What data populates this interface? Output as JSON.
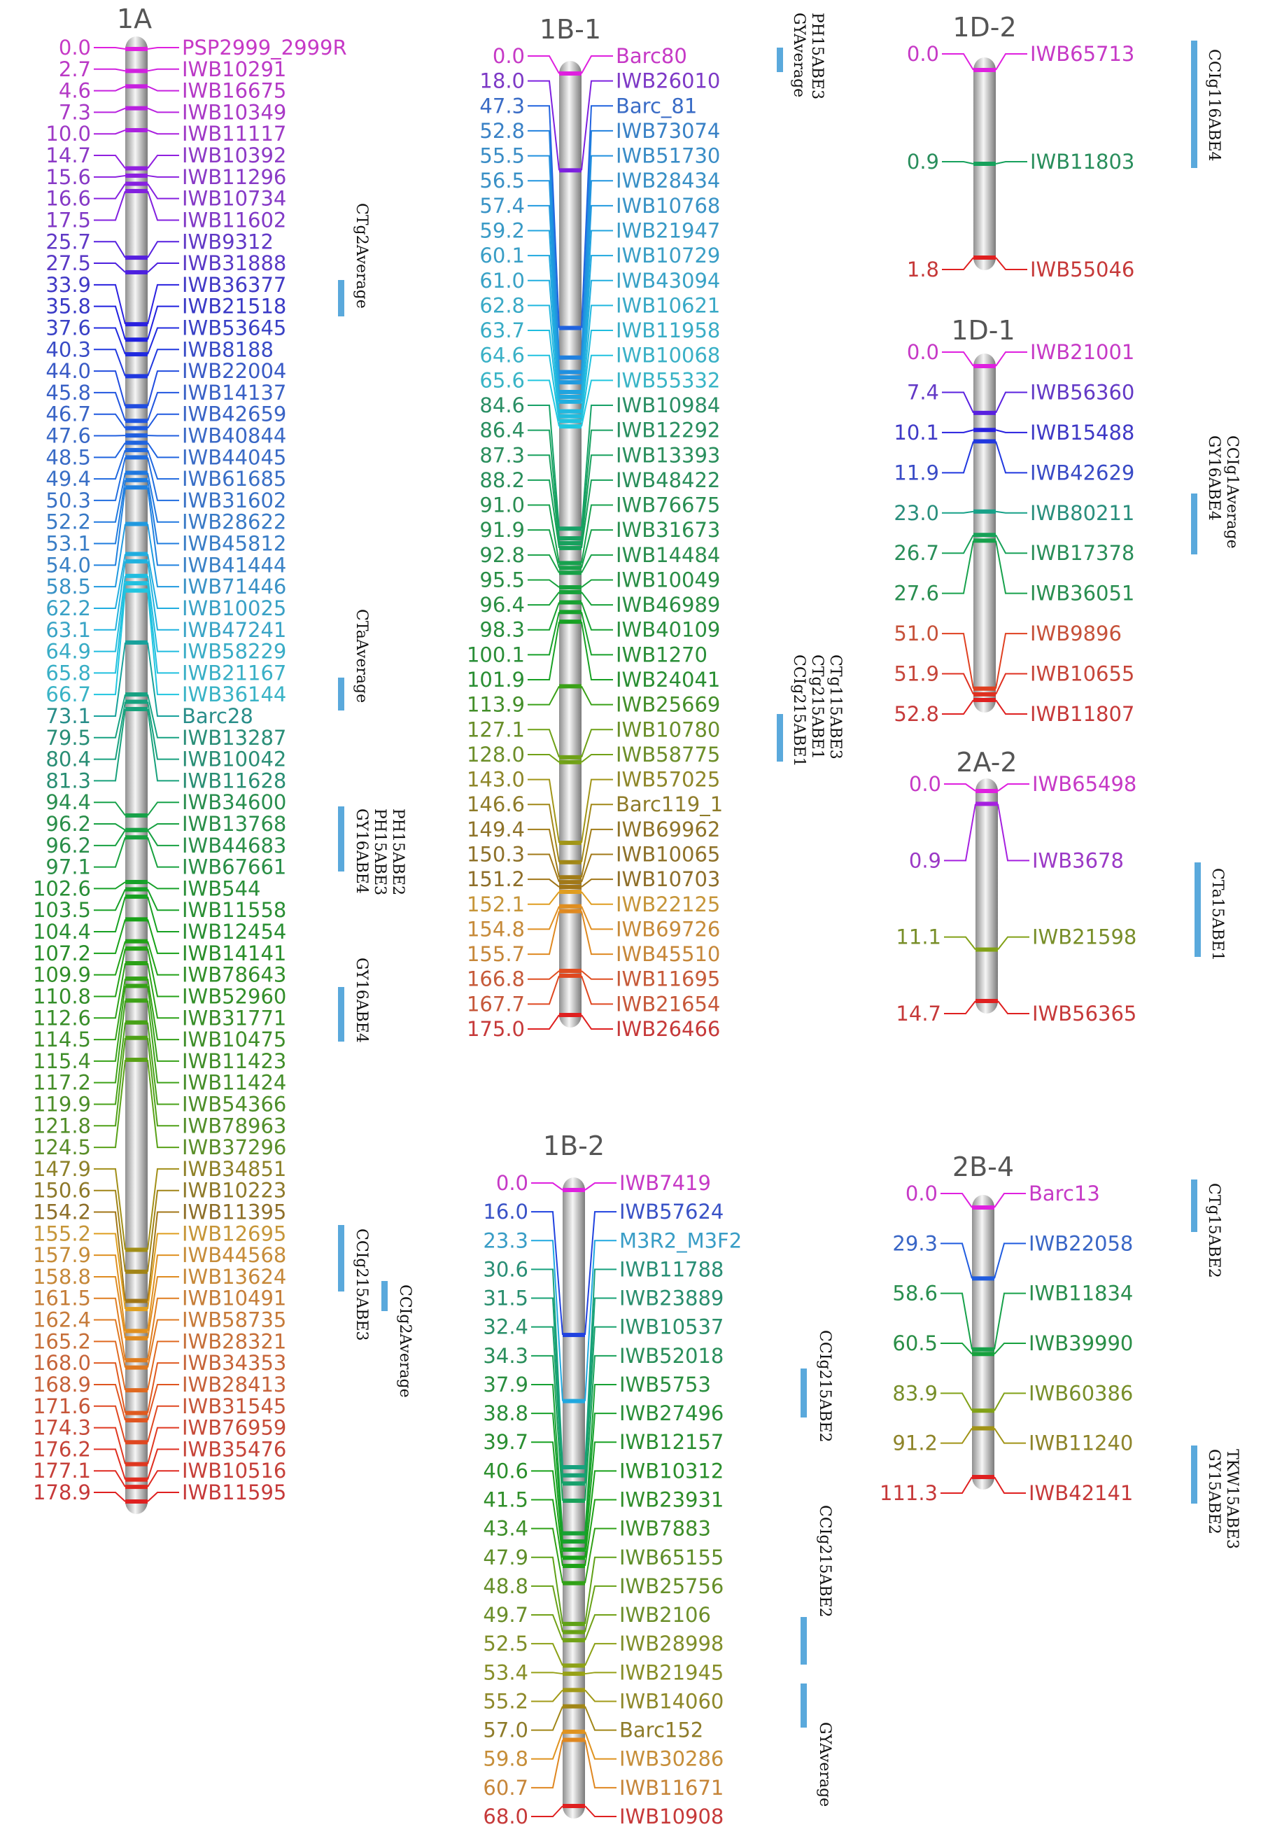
{
  "chromosomes": [
    {
      "id": "1A",
      "title": "1A",
      "markers": [
        [
          "0.0",
          "PSP2999_2999R"
        ],
        [
          "2.7",
          "IWB10291"
        ],
        [
          "4.6",
          "IWB16675"
        ],
        [
          "7.3",
          "IWB10349"
        ],
        [
          "10.0",
          "IWB11117"
        ],
        [
          "14.7",
          "IWB10392"
        ],
        [
          "15.6",
          "IWB11296"
        ],
        [
          "16.6",
          "IWB10734"
        ],
        [
          "17.5",
          "IWB11602"
        ],
        [
          "25.7",
          "IWB9312"
        ],
        [
          "27.5",
          "IWB31888"
        ],
        [
          "33.9",
          "IWB36377"
        ],
        [
          "35.8",
          "IWB21518"
        ],
        [
          "37.6",
          "IWB53645"
        ],
        [
          "40.3",
          "IWB8188"
        ],
        [
          "44.0",
          "IWB22004"
        ],
        [
          "45.8",
          "IWB14137"
        ],
        [
          "46.7",
          "IWB42659"
        ],
        [
          "47.6",
          "IWB40844"
        ],
        [
          "48.5",
          "IWB44045"
        ],
        [
          "49.4",
          "IWB61685"
        ],
        [
          "50.3",
          "IWB31602"
        ],
        [
          "52.2",
          "IWB28622"
        ],
        [
          "53.1",
          "IWB45812"
        ],
        [
          "54.0",
          "IWB41444"
        ],
        [
          "58.5",
          "IWB71446"
        ],
        [
          "62.2",
          "IWB10025"
        ],
        [
          "63.1",
          "IWB47241"
        ],
        [
          "64.9",
          "IWB58229"
        ],
        [
          "65.8",
          "IWB21167"
        ],
        [
          "66.7",
          "IWB36144"
        ],
        [
          "73.1",
          "Barc28"
        ],
        [
          "79.5",
          "IWB13287"
        ],
        [
          "80.4",
          "IWB10042"
        ],
        [
          "81.3",
          "IWB11628"
        ],
        [
          "94.4",
          "IWB34600"
        ],
        [
          "96.2",
          "IWB13768"
        ],
        [
          "96.2",
          "IWB44683"
        ],
        [
          "97.1",
          "IWB67661"
        ],
        [
          "102.6",
          "IWB544"
        ],
        [
          "103.5",
          "IWB11558"
        ],
        [
          "104.4",
          "IWB12454"
        ],
        [
          "107.2",
          "IWB14141"
        ],
        [
          "109.9",
          "IWB78643"
        ],
        [
          "110.8",
          "IWB52960"
        ],
        [
          "112.6",
          "IWB31771"
        ],
        [
          "114.5",
          "IWB10475"
        ],
        [
          "115.4",
          "IWB11423"
        ],
        [
          "117.2",
          "IWB11424"
        ],
        [
          "119.9",
          "IWB54366"
        ],
        [
          "121.8",
          "IWB78963"
        ],
        [
          "124.5",
          "IWB37296"
        ],
        [
          "147.9",
          "IWB34851"
        ],
        [
          "150.6",
          "IWB10223"
        ],
        [
          "154.2",
          "IWB11395"
        ],
        [
          "155.2",
          "IWB12695"
        ],
        [
          "157.9",
          "IWB44568"
        ],
        [
          "158.8",
          "IWB13624"
        ],
        [
          "161.5",
          "IWB10491"
        ],
        [
          "162.4",
          "IWB58735"
        ],
        [
          "165.2",
          "IWB28321"
        ],
        [
          "168.0",
          "IWB34353"
        ],
        [
          "168.9",
          "IWB28413"
        ],
        [
          "171.6",
          "IWB31545"
        ],
        [
          "174.3",
          "IWB76959"
        ],
        [
          "176.2",
          "IWB35476"
        ],
        [
          "177.1",
          "IWB10516"
        ],
        [
          "178.9",
          "IWB11595"
        ]
      ],
      "qtls": [
        {
          "label": "CTg2Average"
        },
        {
          "label": "CTaAverage"
        },
        {
          "label": "GY16ABE4\nPH15ABE3\nPH15ABE2"
        },
        {
          "label": "GY16ABE4"
        },
        {
          "label": "CCIg215ABE3"
        },
        {
          "label": "CCIg2Average"
        }
      ]
    },
    {
      "id": "1B-1",
      "title": "1B-1",
      "markers": [
        [
          "0.0",
          "Barc80"
        ],
        [
          "18.0",
          "IWB26010"
        ],
        [
          "47.3",
          "Barc_81"
        ],
        [
          "52.8",
          "IWB73074"
        ],
        [
          "55.5",
          "IWB51730"
        ],
        [
          "56.5",
          "IWB28434"
        ],
        [
          "57.4",
          "IWB10768"
        ],
        [
          "59.2",
          "IWB21947"
        ],
        [
          "60.1",
          "IWB10729"
        ],
        [
          "61.0",
          "IWB43094"
        ],
        [
          "62.8",
          "IWB10621"
        ],
        [
          "63.7",
          "IWB11958"
        ],
        [
          "64.6",
          "IWB10068"
        ],
        [
          "65.6",
          "IWB55332"
        ],
        [
          "84.6",
          "IWB10984"
        ],
        [
          "86.4",
          "IWB12292"
        ],
        [
          "87.3",
          "IWB13393"
        ],
        [
          "88.2",
          "IWB48422"
        ],
        [
          "91.0",
          "IWB76675"
        ],
        [
          "91.9",
          "IWB31673"
        ],
        [
          "92.8",
          "IWB14484"
        ],
        [
          "95.5",
          "IWB10049"
        ],
        [
          "96.4",
          "IWB46989"
        ],
        [
          "98.3",
          "IWB40109"
        ],
        [
          "100.1",
          "IWB1270"
        ],
        [
          "101.9",
          "IWB24041"
        ],
        [
          "113.9",
          "IWB25669"
        ],
        [
          "127.1",
          "IWB10780"
        ],
        [
          "128.0",
          "IWB58775"
        ],
        [
          "143.0",
          "IWB57025"
        ],
        [
          "146.6",
          "Barc119_1"
        ],
        [
          "149.4",
          "IWB69962"
        ],
        [
          "150.3",
          "IWB10065"
        ],
        [
          "151.2",
          "IWB10703"
        ],
        [
          "152.1",
          "IWB22125"
        ],
        [
          "154.8",
          "IWB69726"
        ],
        [
          "155.7",
          "IWB45510"
        ],
        [
          "166.8",
          "IWB11695"
        ],
        [
          "167.7",
          "IWB21654"
        ],
        [
          "175.0",
          "IWB26466"
        ]
      ],
      "qtls": [
        {
          "label": "GYAverage\nPH15ABE3"
        },
        {
          "label": "CCIg215ABE1\nCTg215ABE1\nCTg115ABE3"
        }
      ]
    },
    {
      "id": "1B-2",
      "title": "1B-2",
      "markers": [
        [
          "0.0",
          "IWB7419"
        ],
        [
          "16.0",
          "IWB57624"
        ],
        [
          "23.3",
          "M3R2_M3F2"
        ],
        [
          "30.6",
          "IWB11788"
        ],
        [
          "31.5",
          "IWB23889"
        ],
        [
          "32.4",
          "IWB10537"
        ],
        [
          "34.3",
          "IWB52018"
        ],
        [
          "37.9",
          "IWB5753"
        ],
        [
          "38.8",
          "IWB27496"
        ],
        [
          "39.7",
          "IWB12157"
        ],
        [
          "40.6",
          "IWB10312"
        ],
        [
          "41.5",
          "IWB23931"
        ],
        [
          "43.4",
          "IWB7883"
        ],
        [
          "47.9",
          "IWB65155"
        ],
        [
          "48.8",
          "IWB25756"
        ],
        [
          "49.7",
          "IWB2106"
        ],
        [
          "52.5",
          "IWB28998"
        ],
        [
          "53.4",
          "IWB21945"
        ],
        [
          "55.2",
          "IWB14060"
        ],
        [
          "57.0",
          "Barc152"
        ],
        [
          "59.8",
          "IWB30286"
        ],
        [
          "60.7",
          "IWB11671"
        ],
        [
          "68.0",
          "IWB10908"
        ]
      ],
      "qtls": [
        {
          "label": "CCIg215ABE2"
        },
        {
          "label": "CCIg215ABE2"
        },
        {
          "label": "GYAverage"
        }
      ]
    },
    {
      "id": "1D-2",
      "title": "1D-2",
      "markers": [
        [
          "0.0",
          "IWB65713"
        ],
        [
          "0.9",
          "IWB11803"
        ],
        [
          "1.8",
          "IWB55046"
        ]
      ],
      "qtls": [
        {
          "label": "CCIg116ABE4"
        }
      ]
    },
    {
      "id": "1D-1",
      "title": "1D-1",
      "markers": [
        [
          "0.0",
          "IWB21001"
        ],
        [
          "7.4",
          "IWB56360"
        ],
        [
          "10.1",
          "IWB15488"
        ],
        [
          "11.9",
          "IWB42629"
        ],
        [
          "23.0",
          "IWB80211"
        ],
        [
          "26.7",
          "IWB17378"
        ],
        [
          "27.6",
          "IWB36051"
        ],
        [
          "51.0",
          "IWB9896"
        ],
        [
          "51.9",
          "IWB10655"
        ],
        [
          "52.8",
          "IWB11807"
        ]
      ],
      "qtls": [
        {
          "label": "GY16ABE4\nCCIg1Average"
        }
      ]
    },
    {
      "id": "2A-2",
      "title": "2A-2",
      "markers": [
        [
          "0.0",
          "IWB65498"
        ],
        [
          "0.9",
          "IWB3678"
        ],
        [
          "11.1",
          "IWB21598"
        ],
        [
          "14.7",
          "IWB56365"
        ]
      ],
      "qtls": [
        {
          "label": "CTa15ABE1"
        }
      ]
    },
    {
      "id": "2B-4",
      "title": "2B-4",
      "markers": [
        [
          "0.0",
          "Barc13"
        ],
        [
          "29.3",
          "IWB22058"
        ],
        [
          "58.6",
          "IWB11834"
        ],
        [
          "60.5",
          "IWB39990"
        ],
        [
          "83.9",
          "IWB60386"
        ],
        [
          "91.2",
          "IWB11240"
        ],
        [
          "111.3",
          "IWB42141"
        ]
      ],
      "qtls": [
        {
          "label": "CTg15ABE2"
        },
        {
          "label": "GY15ABE2\nTKW15ABE3"
        }
      ]
    }
  ],
  "colors": {
    "chrom_light": "#f4f4f4",
    "chrom_dark": "#8a8a8a",
    "qtl_bar": "#5aa9dc",
    "title": "#555555"
  }
}
